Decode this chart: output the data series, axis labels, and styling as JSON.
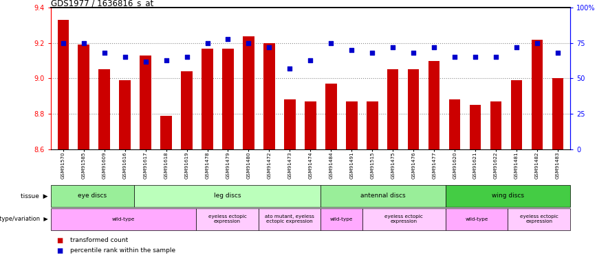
{
  "title": "GDS1977 / 1636816_s_at",
  "samples": [
    "GSM91570",
    "GSM91585",
    "GSM91609",
    "GSM91616",
    "GSM91617",
    "GSM91618",
    "GSM91619",
    "GSM91478",
    "GSM91479",
    "GSM91480",
    "GSM91472",
    "GSM91473",
    "GSM91474",
    "GSM91484",
    "GSM91491",
    "GSM91515",
    "GSM91475",
    "GSM91476",
    "GSM91477",
    "GSM91620",
    "GSM91621",
    "GSM91622",
    "GSM91481",
    "GSM91482",
    "GSM91483"
  ],
  "bar_values": [
    9.33,
    9.19,
    9.05,
    8.99,
    9.13,
    8.79,
    9.04,
    9.17,
    9.17,
    9.24,
    9.2,
    8.88,
    8.87,
    8.97,
    8.87,
    8.87,
    9.05,
    9.05,
    9.1,
    8.88,
    8.85,
    8.87,
    8.99,
    9.22,
    9.0
  ],
  "percentile_values": [
    75,
    75,
    68,
    65,
    62,
    63,
    65,
    75,
    78,
    75,
    72,
    57,
    63,
    75,
    70,
    68,
    72,
    68,
    72,
    65,
    65,
    65,
    72,
    75,
    68
  ],
  "ylim_left": [
    8.6,
    9.4
  ],
  "ylim_right": [
    0,
    100
  ],
  "yticks_left": [
    8.6,
    8.8,
    9.0,
    9.2,
    9.4
  ],
  "yticks_right": [
    0,
    25,
    50,
    75,
    100
  ],
  "ytick_labels_right": [
    "0",
    "25",
    "50",
    "75",
    "100%"
  ],
  "bar_color": "#cc0000",
  "dot_color": "#0000cc",
  "bar_bottom": 8.6,
  "tissue_sections": [
    {
      "label": "eye discs",
      "start": 0,
      "end": 4,
      "color": "#99ee99"
    },
    {
      "label": "leg discs",
      "start": 4,
      "end": 13,
      "color": "#bbffbb"
    },
    {
      "label": "antennal discs",
      "start": 13,
      "end": 19,
      "color": "#99ee99"
    },
    {
      "label": "wing discs",
      "start": 19,
      "end": 25,
      "color": "#44cc44"
    }
  ],
  "genotype_sections": [
    {
      "label": "wild-type",
      "start": 0,
      "end": 7,
      "color": "#ffaaff"
    },
    {
      "label": "eyeless ectopic\nexpression",
      "start": 7,
      "end": 10,
      "color": "#ffccff"
    },
    {
      "label": "ato mutant, eyeless\nectopic expression",
      "start": 10,
      "end": 13,
      "color": "#ffccff"
    },
    {
      "label": "wild-type",
      "start": 13,
      "end": 15,
      "color": "#ffaaff"
    },
    {
      "label": "eyeless ectopic\nexpression",
      "start": 15,
      "end": 19,
      "color": "#ffccff"
    },
    {
      "label": "wild-type",
      "start": 19,
      "end": 22,
      "color": "#ffaaff"
    },
    {
      "label": "eyeless ectopic\nexpression",
      "start": 22,
      "end": 25,
      "color": "#ffccff"
    }
  ],
  "grid_dotted_at": [
    8.8,
    9.0,
    9.2
  ],
  "grid_color": "#888888",
  "background_color": "#ffffff"
}
